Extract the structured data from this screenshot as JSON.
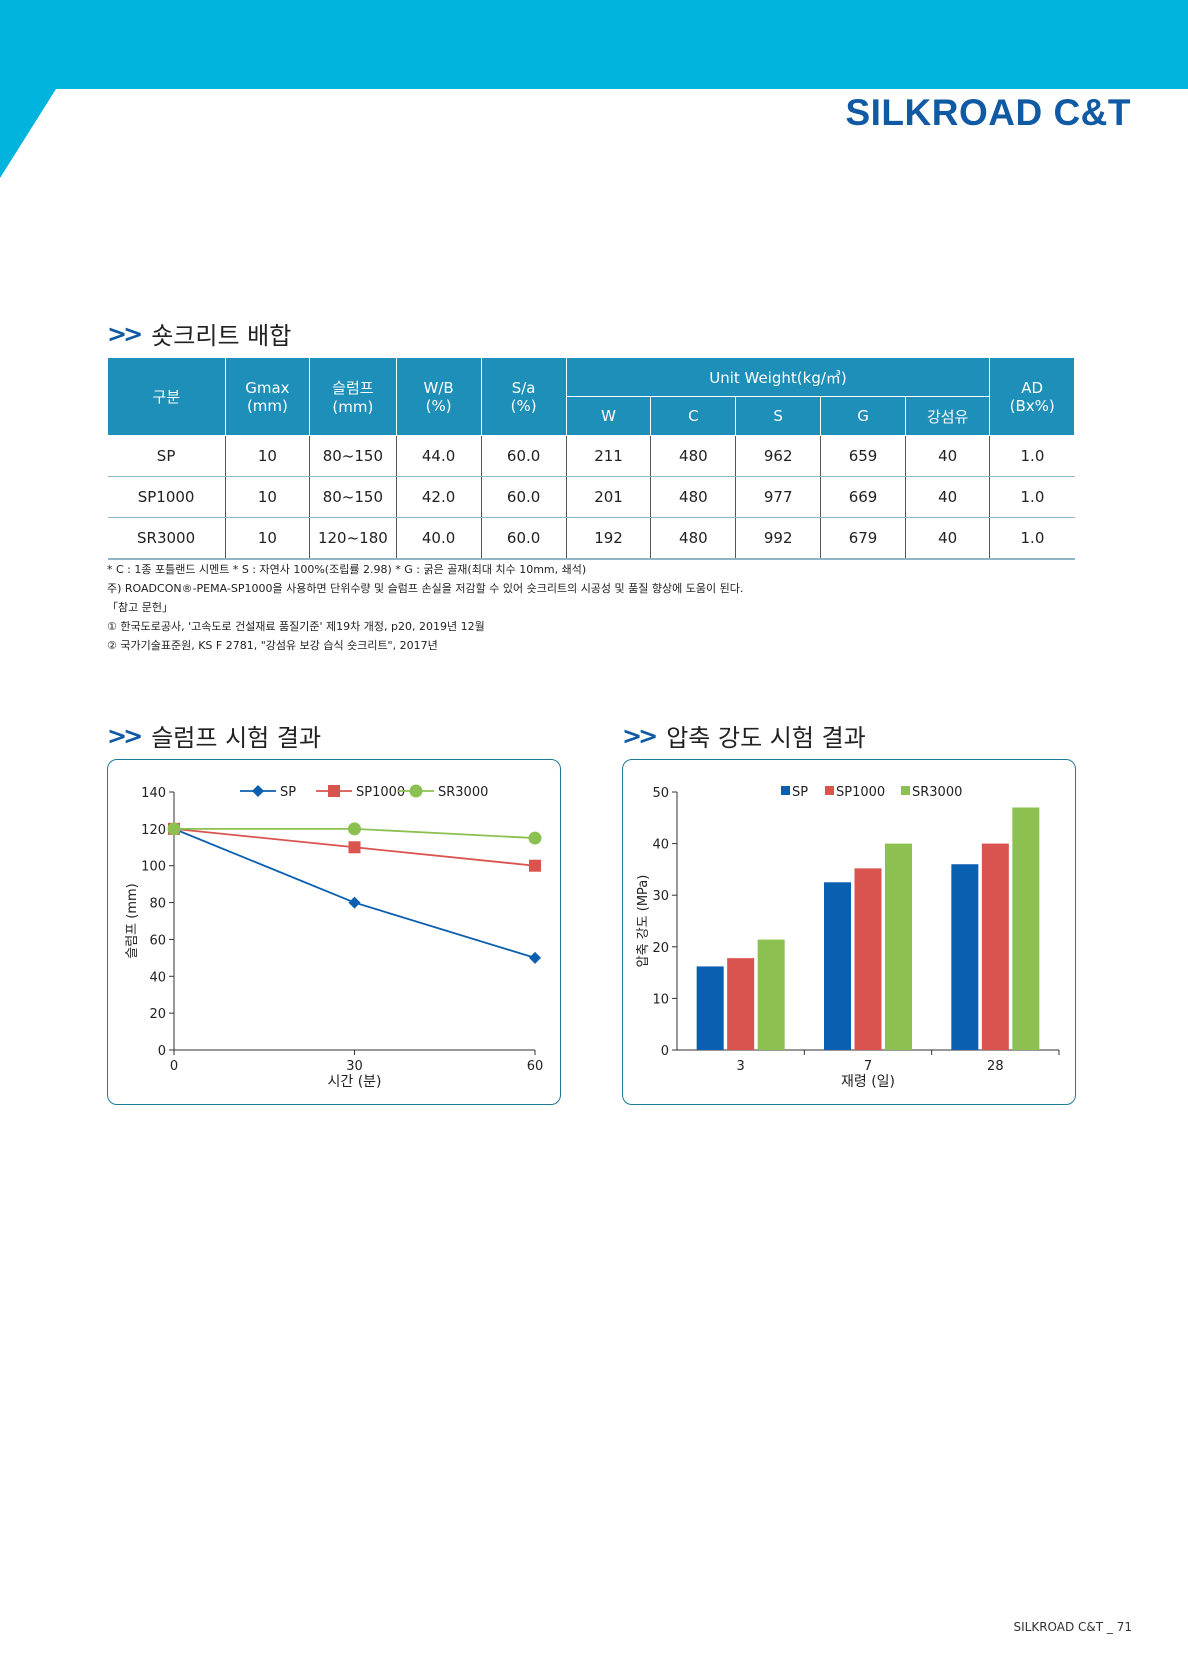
{
  "brand": "SILKROAD C&T",
  "colors": {
    "header": "#00b4dd",
    "brand": "#0f5aa3",
    "table_head": "#1e8fb8",
    "sp": "#0a5fb0",
    "sp1000": "#d9534f",
    "sr3000": "#8cc152"
  },
  "mix_section": {
    "title": "숏크리트 배합",
    "headers": {
      "category": "구분",
      "gmax": "Gmax",
      "gmax_unit": "(mm)",
      "slump": "슬럼프",
      "slump_unit": "(mm)",
      "wb": "W/B",
      "wb_unit": "(%)",
      "sa": "S/a",
      "sa_unit": "(%)",
      "unit_weight": "Unit Weight(kg/㎥)",
      "w": "W",
      "c": "C",
      "s": "S",
      "g": "G",
      "fiber": "강섬유",
      "ad": "AD",
      "ad_unit": "(Bx%)"
    },
    "rows": [
      [
        "SP",
        "10",
        "80~150",
        "44.0",
        "60.0",
        "211",
        "480",
        "962",
        "659",
        "40",
        "1.0"
      ],
      [
        "SP1000",
        "10",
        "80~150",
        "42.0",
        "60.0",
        "201",
        "480",
        "977",
        "669",
        "40",
        "1.0"
      ],
      [
        "SR3000",
        "10",
        "120~180",
        "40.0",
        "60.0",
        "192",
        "480",
        "992",
        "679",
        "40",
        "1.0"
      ]
    ],
    "notes": [
      "* C : 1종 포틀랜드 시멘트    * S : 자연사 100%(조립률 2.98)    * G : 굵은 골재(최대 치수 10mm, 쇄석)",
      "주) ROADCON®-PEMA-SP1000을 사용하면 단위수량 및 슬럼프 손실을 저감할 수 있어 숏크리트의 시공성 및 품질 향상에 도움이 된다.",
      "「참고 문헌」",
      "① 한국도로공사, '고속도로 건설재료 품질기준' 제19차 개정, p20, 2019년 12월",
      "② 국가기술표준원, KS F 2781, \"강섬유 보강 습식 숏크리트\", 2017년"
    ]
  },
  "slump_section": {
    "title": "슬럼프 시험 결과"
  },
  "strength_section": {
    "title": "압축 강도 시험 결과"
  },
  "chart_data": [
    {
      "type": "line",
      "x": [
        0,
        30,
        60
      ],
      "xlabel": "시간 (분)",
      "ylabel": "슬럼프 (mm)",
      "ylim": [
        0,
        140
      ],
      "yticks": [
        0,
        20,
        40,
        60,
        80,
        100,
        120,
        140
      ],
      "xticks": [
        0,
        30,
        60
      ],
      "legend": "top",
      "series": [
        {
          "name": "SP",
          "values": [
            120,
            80,
            50
          ],
          "marker": "diamond",
          "color": "#0a5fb0"
        },
        {
          "name": "SP1000",
          "values": [
            120,
            110,
            100
          ],
          "marker": "square",
          "color": "#d9534f"
        },
        {
          "name": "SR3000",
          "values": [
            120,
            120,
            115
          ],
          "marker": "circle",
          "color": "#8cc152"
        }
      ]
    },
    {
      "type": "bar",
      "categories": [
        "3",
        "7",
        "28"
      ],
      "xlabel": "재령 (일)",
      "ylabel": "압축 강도 (MPa)",
      "ylim": [
        0,
        50
      ],
      "yticks": [
        0,
        10,
        20,
        30,
        40,
        50
      ],
      "legend": "top",
      "series": [
        {
          "name": "SP",
          "values": [
            16.2,
            32.5,
            36
          ],
          "color": "#0a5fb0"
        },
        {
          "name": "SP1000",
          "values": [
            17.8,
            35.2,
            40
          ],
          "color": "#d9534f"
        },
        {
          "name": "SR3000",
          "values": [
            21.4,
            40,
            47
          ],
          "color": "#8cc152"
        }
      ]
    }
  ],
  "footer": "SILKROAD C&T _ 71"
}
